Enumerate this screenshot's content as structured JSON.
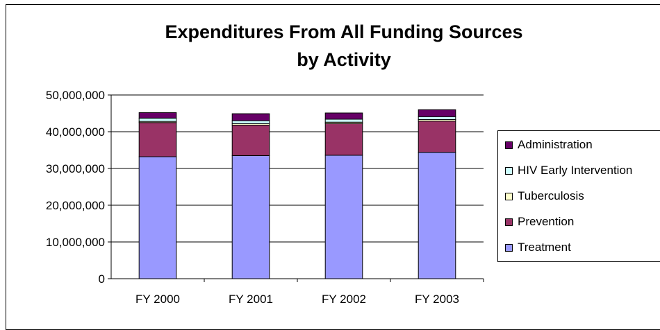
{
  "chart_data": {
    "type": "bar",
    "stacked": true,
    "title_line1": "Expenditures From All Funding Sources",
    "title_line2": "by Activity",
    "categories": [
      "FY 2000",
      "FY 2001",
      "FY 2002",
      "FY 2003"
    ],
    "ylim": [
      0,
      50000000
    ],
    "yticks": [
      "0",
      "10,000,000",
      "20,000,000",
      "30,000,000",
      "40,000,000",
      "50,000,000"
    ],
    "ytick_values": [
      0,
      10000000,
      20000000,
      30000000,
      40000000,
      50000000
    ],
    "grid": true,
    "legend_position": "right",
    "series": [
      {
        "name": "Treatment",
        "color": "#9999ff",
        "values": [
          33200000,
          33500000,
          33600000,
          34400000
        ]
      },
      {
        "name": "Prevention",
        "color": "#993366",
        "values": [
          9300000,
          8300000,
          8600000,
          8500000
        ]
      },
      {
        "name": "Tuberculosis",
        "color": "#ffffcc",
        "values": [
          300000,
          400000,
          400000,
          400000
        ]
      },
      {
        "name": "HIV Early Intervention",
        "color": "#ccffff",
        "values": [
          900000,
          800000,
          800000,
          800000
        ]
      },
      {
        "name": "Administration",
        "color": "#660066",
        "values": [
          1500000,
          1900000,
          1700000,
          1900000
        ]
      }
    ]
  }
}
